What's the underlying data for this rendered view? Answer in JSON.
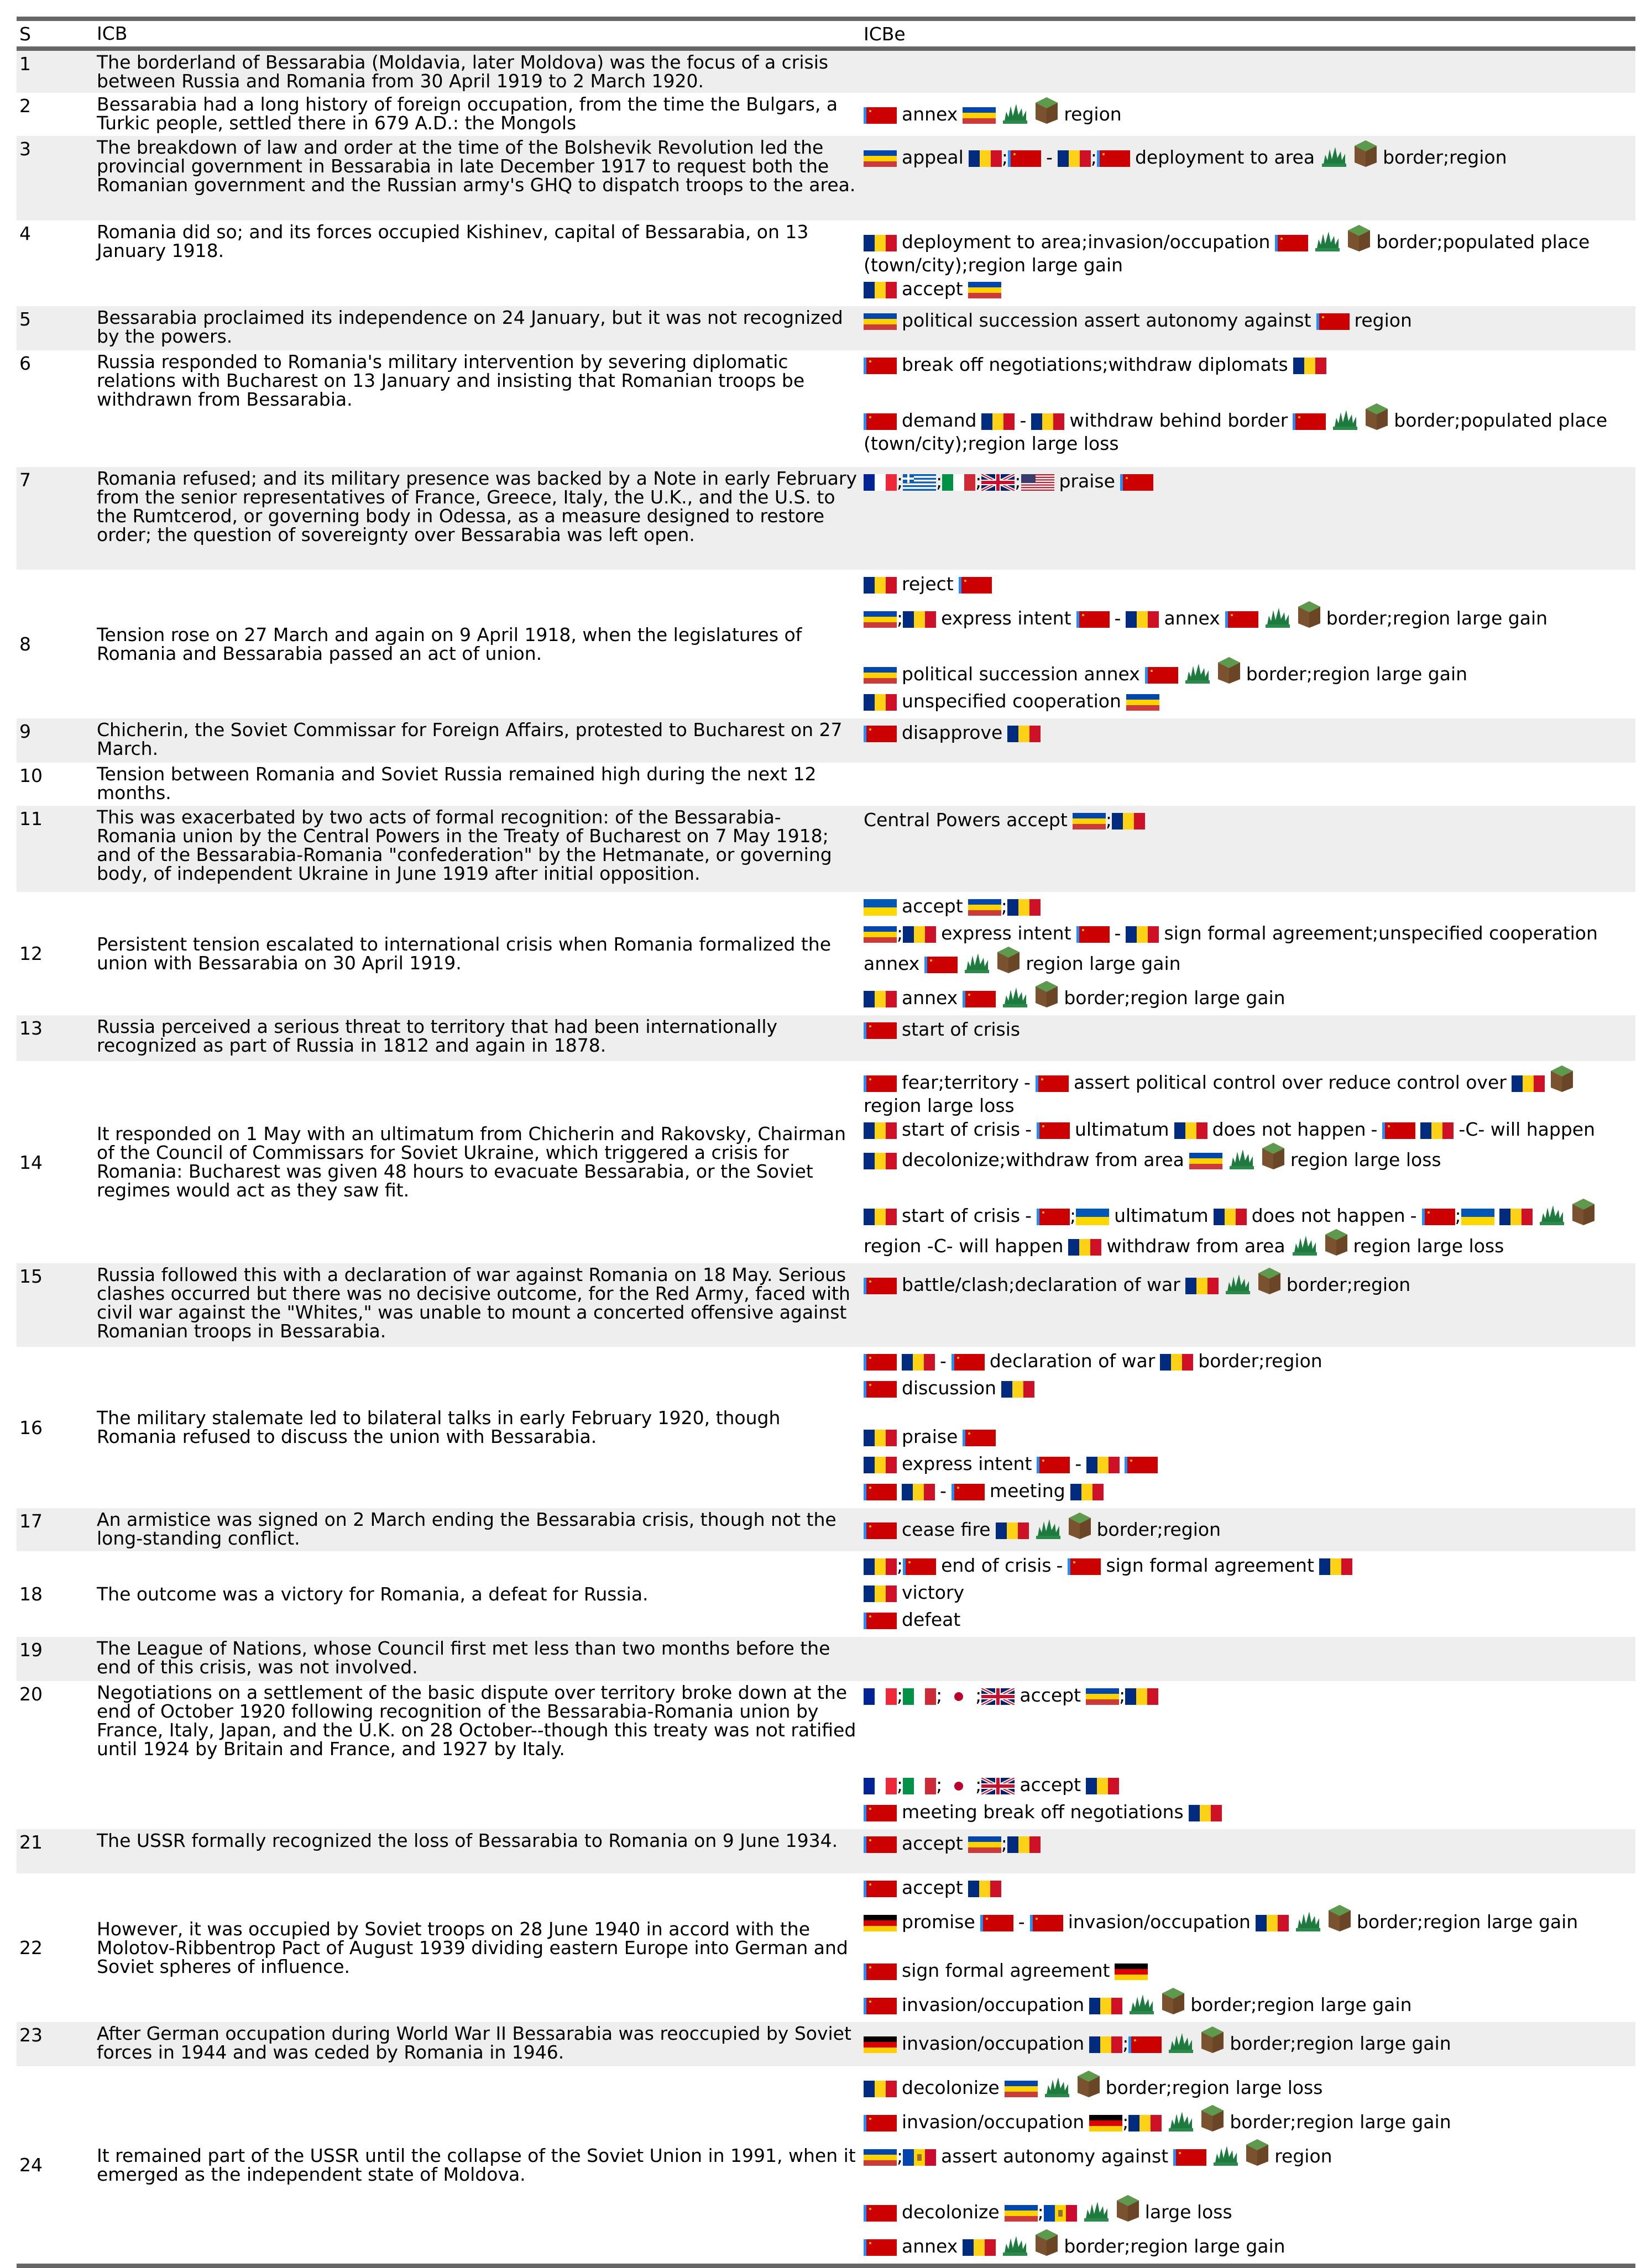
{
  "header": {
    "s": "S",
    "icb": "ICB",
    "icbe": "ICBe"
  },
  "rows": [
    {
      "s": "1",
      "icb": "The borderland of Bessarabia (Moldavia, later Moldova) was the focus of a crisis between Russia and Romania from 30 April 1919 to 2 March 1920.",
      "events": []
    },
    {
      "s": "2",
      "icb": "Bessarabia had a long history of foreign occupation, from the time the Bulgars, a Turkic people, settled there in 679 A.D.: the Mongols",
      "events": [
        [
          "flag:ru",
          "annex",
          "flag:bess",
          "icon:tree",
          "icon:cube",
          "region"
        ]
      ]
    },
    {
      "s": "3",
      "icb": "The breakdown of law and order at the time of the Bolshevik Revolution led the provincial government in Bessarabia in late December 1917 to request both the Romanian government and the Russian army's GHQ to dispatch troops to the area.",
      "events": [
        [
          "flag:bess",
          "appeal",
          "flag:ro",
          ";",
          "flag:ru",
          "-",
          "flag:ro",
          ";",
          "flag:ru",
          "deployment to area",
          "icon:tree",
          "icon:cube",
          "border;region"
        ]
      ]
    },
    {
      "s": "4",
      "icb": "Romania did so; and its forces occupied Kishinev, capital of Bessarabia, on 13 January 1918.",
      "events": [
        [
          "flag:ro",
          "deployment to area;invasion/occupation",
          "flag:ru",
          "icon:tree",
          "icon:cube",
          "border;populated place (town/city);region large gain"
        ],
        [
          "flag:ro",
          "accept",
          "flag:bess"
        ]
      ]
    },
    {
      "s": "5",
      "icb": "Bessarabia proclaimed its independence on 24 January, but it was not recognized by the powers.",
      "events": [
        [
          "flag:bess",
          "political succession assert autonomy against",
          "flag:ru",
          "region"
        ]
      ]
    },
    {
      "s": "6",
      "icb": "Russia responded to Romania's military intervention by severing diplomatic relations with Bucharest on 13 January and insisting that Romanian troops be withdrawn from Bessarabia.",
      "events": [
        [
          "flag:ru",
          "break off negotiations;withdraw diplomats",
          "flag:ro"
        ],
        [
          "flag:ru",
          "demand",
          "flag:ro",
          "-",
          "flag:ro",
          "withdraw behind border",
          "flag:ru",
          "icon:tree",
          "icon:cube",
          "border;populated place (town/city);region large loss"
        ]
      ]
    },
    {
      "s": "7",
      "icb": "Romania refused; and its military presence was backed by a Note in early February from the senior representatives of France, Greece, Italy, the U.K., and the U.S. to the Rumtcerod, or governing body in Odessa, as a measure designed to restore order; the question of sovereignty over Bessarabia was left open.",
      "events": [
        [
          "flag:fr",
          ";",
          "flag:gr",
          ";",
          "flag:it",
          ";",
          "flag:uk",
          ";",
          "flag:us",
          "praise",
          "flag:ru"
        ]
      ]
    },
    {
      "s": "8",
      "icb": "Tension rose on 27 March and again on 9 April 1918, when the legislatures of Romania and Bessarabia passed an act of union.",
      "events": [
        [
          "flag:ro",
          "reject",
          "flag:ru"
        ],
        [
          "flag:bess",
          ";",
          "flag:ro",
          "express intent",
          "flag:ru",
          "-",
          "flag:ro",
          "annex",
          "flag:ru",
          "icon:tree",
          "icon:cube",
          "border;region large gain"
        ],
        [
          "flag:bess",
          "political succession annex",
          "flag:ru",
          "icon:tree",
          "icon:cube",
          "border;region large gain"
        ],
        [
          "flag:ro",
          "unspecified cooperation",
          "flag:bess"
        ]
      ]
    },
    {
      "s": "9",
      "icb": "Chicherin, the Soviet Commissar for Foreign Affairs, protested to Bucharest on 27 March.",
      "events": [
        [
          "flag:ru",
          "disapprove",
          "flag:ro"
        ]
      ]
    },
    {
      "s": "10",
      "icb": "Tension between Romania and Soviet Russia remained high during the next 12 months.",
      "events": []
    },
    {
      "s": "11",
      "icb": "This was exacerbated by two acts of formal recognition: of the Bessarabia-Romania union by the Central Powers in the Treaty of Bucharest on 7 May 1918; and of the Bessarabia-Romania \"confederation\" by the Hetmanate, or governing body, of independent Ukraine in June 1919 after initial opposition.",
      "events": [
        [
          "Central Powers accept",
          "flag:bess",
          ";",
          "flag:ro"
        ]
      ]
    },
    {
      "s": "12",
      "icb": "Persistent tension escalated to international crisis when Romania formalized the union with Bessarabia on 30 April 1919.",
      "events": [
        [
          "flag:ua",
          "accept",
          "flag:bess",
          ";",
          "flag:ro"
        ],
        [
          "flag:bess",
          ";",
          "flag:ro",
          "express intent",
          "flag:ru",
          "-",
          "flag:ro",
          "sign formal agreement;unspecified cooperation annex",
          "flag:ru",
          "icon:tree",
          "icon:cube",
          "region large gain"
        ],
        [
          "flag:ro",
          "annex",
          "flag:ru",
          "icon:tree",
          "icon:cube",
          "border;region large gain"
        ]
      ]
    },
    {
      "s": "13",
      "icb": "Russia perceived a serious threat to territory that had been internationally recognized as part of Russia in 1812 and again in 1878.",
      "events": [
        [
          "flag:ru",
          "start of crisis"
        ]
      ]
    },
    {
      "s": "14",
      "icb": "It responded on 1 May with an ultimatum from Chicherin and Rakovsky, Chairman of the Council of Commissars for Soviet Ukraine, which triggered a crisis for Romania: Bucharest was given 48 hours to evacuate Bessarabia, or the Soviet regimes would act as they saw fit.",
      "events": [
        [
          "flag:ru",
          "fear;territory",
          "-",
          "flag:ru",
          "assert political control over reduce control over",
          "flag:ro",
          "icon:cube",
          "region large loss"
        ],
        [
          "flag:ro",
          "start of crisis",
          "-",
          "flag:ru",
          "ultimatum",
          "flag:ro",
          "does not happen",
          "-",
          "flag:ru",
          "flag:ro",
          "-C- will happen",
          "flag:ro",
          "decolonize;withdraw from area",
          "flag:bess",
          "icon:tree",
          "icon:cube",
          "region large loss"
        ],
        [
          "flag:ro",
          "start of crisis",
          "-",
          "flag:ru",
          ";",
          "flag:ua",
          "ultimatum",
          "flag:ro",
          "does not happen",
          "-",
          "flag:ru",
          ";",
          "flag:ua",
          "flag:ro",
          "icon:tree",
          "icon:cube",
          "region -C- will happen",
          "flag:ro",
          "withdraw from area",
          "icon:tree",
          "icon:cube",
          "region large loss"
        ]
      ]
    },
    {
      "s": "15",
      "icb": "Russia followed this with a declaration of war against Romania on 18 May. Serious clashes occurred but there was no decisive outcome, for the Red Army, faced with civil war against the \"Whites,\" was unable to mount a concerted offensive against Romanian troops in Bessarabia.",
      "events": [
        [
          "flag:ru",
          "battle/clash;declaration of war",
          "flag:ro",
          "icon:tree",
          "icon:cube",
          "border;region"
        ]
      ]
    },
    {
      "s": "16",
      "icb": "The military stalemate led to bilateral talks in early February 1920, though Romania refused to discuss the union with Bessarabia.",
      "events": [
        [
          "flag:ru",
          "flag:ro",
          "-",
          "flag:ru",
          "declaration of war",
          "flag:ro",
          "border;region"
        ],
        [
          "flag:ru",
          "discussion",
          "flag:ro"
        ],
        [
          "flag:ro",
          "praise",
          "flag:ru"
        ],
        [
          "flag:ro",
          "express intent",
          "flag:ru",
          "-",
          "flag:ro",
          "flag:ru"
        ],
        [
          "flag:ru",
          "flag:ro",
          "-",
          "flag:ru",
          "meeting",
          "flag:ro"
        ]
      ]
    },
    {
      "s": "17",
      "icb": "An armistice was signed on 2 March ending the Bessarabia crisis, though not the long-standing conflict.",
      "events": [
        [
          "flag:ru",
          "cease fire",
          "flag:ro",
          "icon:tree",
          "icon:cube",
          "border;region"
        ]
      ]
    },
    {
      "s": "18",
      "icb": "The outcome was a victory for Romania, a defeat for Russia.",
      "events": [
        [
          "flag:ro",
          ";",
          "flag:ru",
          "end of crisis",
          "-",
          "flag:ru",
          "sign formal agreement",
          "flag:ro"
        ],
        [
          "flag:ro",
          "victory"
        ],
        [
          "flag:ru",
          "defeat"
        ]
      ]
    },
    {
      "s": "19",
      "icb": "The League of Nations, whose Council first met less than two months before the end of this crisis, was not involved.",
      "events": []
    },
    {
      "s": "20",
      "icb": "Negotiations on a settlement of the basic dispute over territory broke down at the end of October 1920 following recognition of the Bessarabia-Romania union by France, Italy, Japan, and the U.K. on 28 October--though this treaty was not ratified until 1924 by Britain and France, and 1927 by Italy.",
      "events": [
        [
          "flag:fr",
          ";",
          "flag:it",
          ";",
          "flag:jp",
          ";",
          "flag:uk",
          "accept",
          "flag:bess",
          ";",
          "flag:ro"
        ],
        [
          "flag:fr",
          ";",
          "flag:it",
          ";",
          "flag:jp",
          ";",
          "flag:uk",
          "accept",
          "flag:ro"
        ],
        [
          "flag:ru",
          "meeting break off negotiations",
          "flag:ro"
        ]
      ]
    },
    {
      "s": "21",
      "icb": "The USSR formally recognized the loss of Bessarabia to Romania on 9 June 1934.",
      "events": [
        [
          "flag:ru",
          "accept",
          "flag:bess",
          ";",
          "flag:ro"
        ]
      ]
    },
    {
      "s": "22",
      "icb": "However, it was occupied by Soviet troops on 28 June 1940 in accord with the Molotov-Ribbentrop Pact of August 1939 dividing eastern Europe into German and Soviet spheres of influence.",
      "events": [
        [
          "flag:ru",
          "accept",
          "flag:ro"
        ],
        [
          "flag:de",
          "promise",
          "flag:ru",
          "-",
          "flag:ru",
          "invasion/occupation",
          "flag:ro",
          "icon:tree",
          "icon:cube",
          "border;region large gain"
        ],
        [
          "flag:ru",
          "sign formal agreement",
          "flag:de"
        ],
        [
          "flag:ru",
          "invasion/occupation",
          "flag:ro",
          "icon:tree",
          "icon:cube",
          "border;region large gain"
        ]
      ]
    },
    {
      "s": "23",
      "icb": "After German occupation during World War II Bessarabia was reoccupied by Soviet forces in 1944 and was ceded by Romania in 1946.",
      "events": [
        [
          "flag:de",
          "invasion/occupation",
          "flag:ro",
          ";",
          "flag:ru",
          "icon:tree",
          "icon:cube",
          "border;region large gain"
        ]
      ]
    },
    {
      "s": "24",
      "icb": "It remained part of the USSR until the collapse of the Soviet Union in 1991, when it emerged as the independent state of Moldova.",
      "events": [
        [
          "flag:ro",
          "decolonize",
          "flag:bess",
          "icon:tree",
          "icon:cube",
          "border;region large loss"
        ],
        [
          "flag:ru",
          "invasion/occupation",
          "flag:de",
          ";",
          "flag:ro",
          "icon:tree",
          "icon:cube",
          "border;region large gain"
        ],
        [
          "flag:bess",
          ";",
          "flag:md",
          "assert autonomy against",
          "flag:ru",
          "icon:tree",
          "icon:cube",
          "region"
        ],
        [
          "flag:ru",
          "decolonize",
          "flag:bess",
          ";",
          "flag:md",
          "icon:tree",
          "icon:cube",
          "large loss"
        ],
        [
          "flag:ru",
          "annex",
          "flag:ro",
          "icon:tree",
          "icon:cube",
          "border;region large gain"
        ]
      ]
    }
  ]
}
